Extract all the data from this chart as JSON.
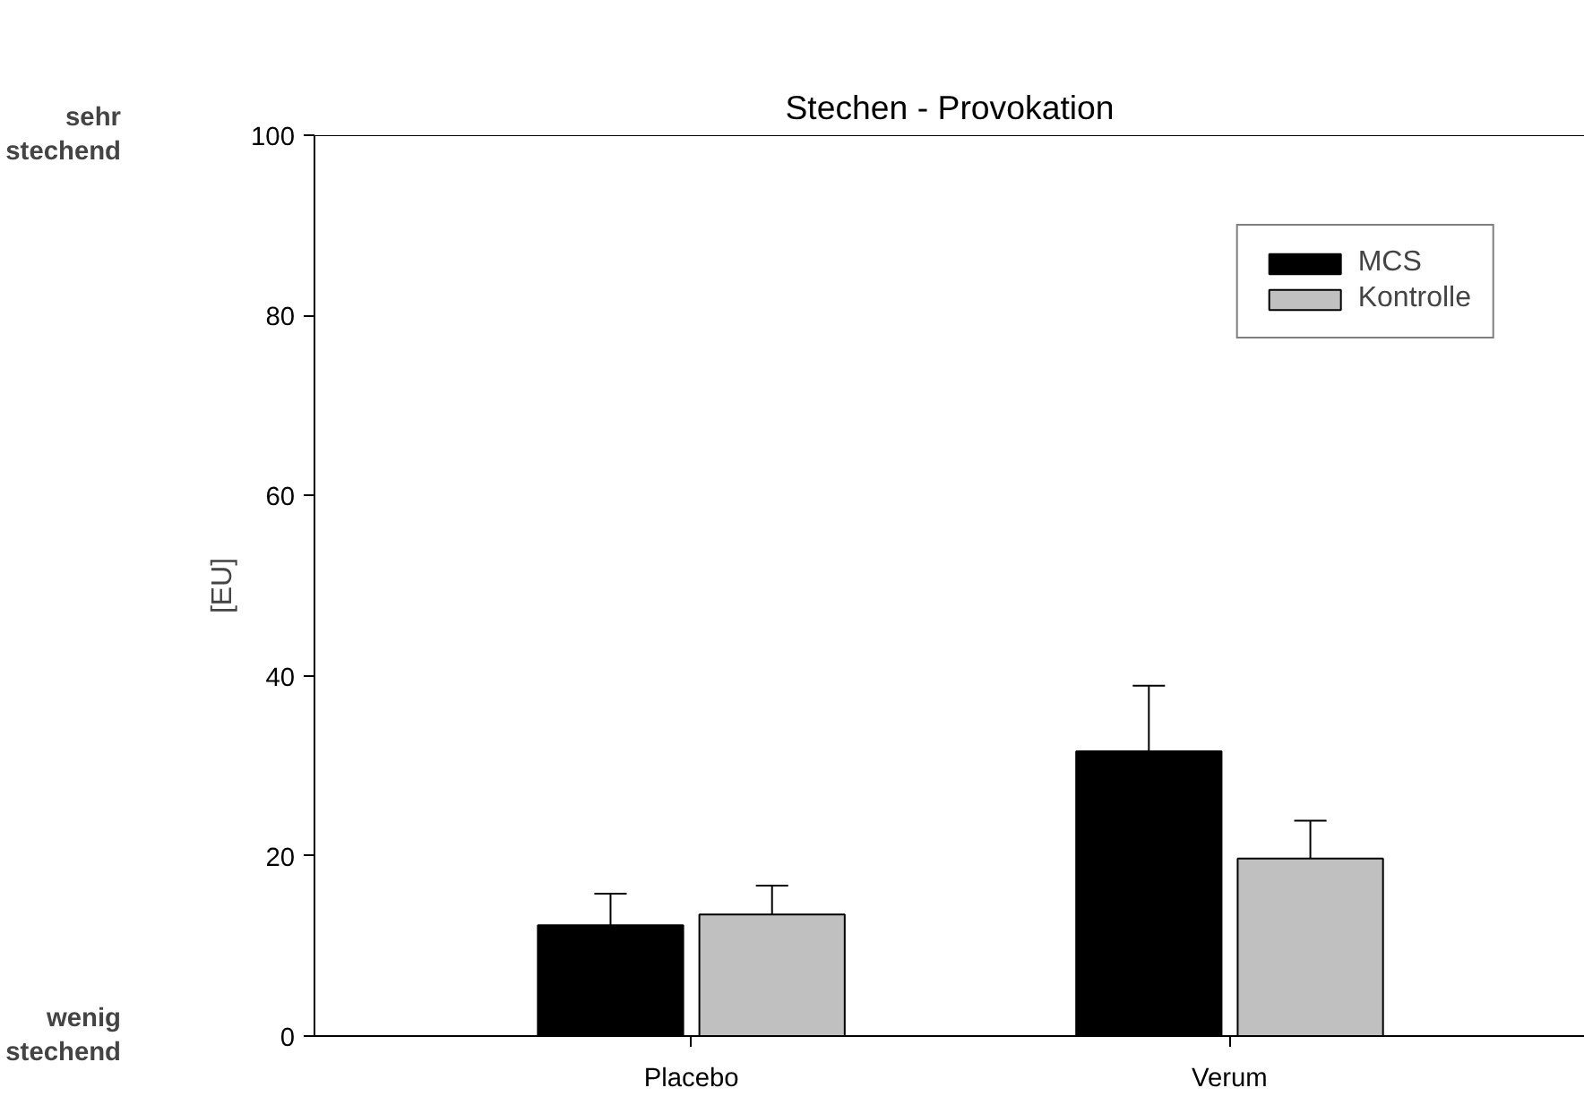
{
  "chart_data": {
    "type": "bar",
    "title": "Stechen - Provokation",
    "ylabel": "[EU]",
    "annotations": [
      "sehr stechend",
      "wenig stechend"
    ],
    "categories": [
      "Placebo",
      "Verum"
    ],
    "series": [
      {
        "name": "MCS",
        "color": "#000000",
        "values": [
          12.3,
          31.6
        ],
        "errors": [
          [
            12.3,
            15.8
          ],
          [
            31.6,
            38.9
          ]
        ]
      },
      {
        "name": "Kontrolle",
        "color": "#c0c0c0",
        "values": [
          13.5,
          19.7
        ],
        "errors": [
          [
            13.5,
            16.7
          ],
          [
            19.7,
            23.9
          ]
        ]
      }
    ],
    "ylim": [
      0,
      100
    ],
    "yticks": [
      0,
      20,
      40,
      60,
      80,
      100
    ],
    "grid": false,
    "legend": "top right"
  }
}
